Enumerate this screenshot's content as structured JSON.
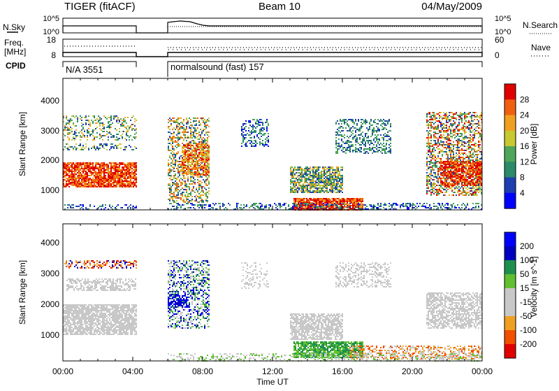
{
  "header": {
    "radar": "TIGER (fitACF)",
    "beam": "Beam 10",
    "date": "04/May/2009"
  },
  "noise_panel": {
    "left_label": "N.Sky",
    "left_ticks": [
      "10^5",
      "10^0"
    ],
    "right_ticks": [
      "10^5",
      "10^0"
    ],
    "right_label": "N.Search"
  },
  "freq_panel": {
    "left_label_1": "Freq.",
    "left_label_2": "[MHz]",
    "left_ticks": [
      "18",
      "8"
    ],
    "right_ticks": [
      "60",
      "0"
    ],
    "right_label": "Nave"
  },
  "cpid": {
    "label": "CPID",
    "segments": [
      "N/A 3551",
      "normalsound (fast) 157"
    ]
  },
  "time_axis": {
    "label": "Time UT",
    "ticks": [
      "00:00",
      "04:00",
      "08:00",
      "12:00",
      "16:00",
      "20:00",
      "00:00"
    ]
  },
  "colors": {
    "power": [
      "#0000ff",
      "#1f3fb0",
      "#2a8a6a",
      "#4fa55a",
      "#c8c832",
      "#f0a020",
      "#f06010",
      "#e00000"
    ],
    "velocity": [
      "#e00000",
      "#f05000",
      "#f0a020",
      "#c8c8c8",
      "#c8c8c8",
      "#60c030",
      "#1f8f4f",
      "#0000c0",
      "#0000ff"
    ]
  },
  "chart_data": [
    {
      "type": "heatmap",
      "ylabel": "Slant Range [km]",
      "yticks": [
        "1000",
        "2000",
        "3000",
        "4000"
      ],
      "ylim": [
        180,
        4600
      ],
      "xlabel": "Time UT",
      "xlim_hours": [
        0,
        24
      ],
      "colorbar": {
        "label": "Power [dB]",
        "ticks": [
          "4",
          "8",
          "12",
          "16",
          "20",
          "24",
          "28"
        ]
      }
    },
    {
      "type": "heatmap",
      "ylabel": "Slant Range [km]",
      "yticks": [
        "1000",
        "2000",
        "3000",
        "4000"
      ],
      "ylim": [
        180,
        4600
      ],
      "xlabel": "Time UT",
      "xlim_hours": [
        0,
        24
      ],
      "colorbar": {
        "label": "Velocity [m s^-1]",
        "ticks": [
          "200",
          "100",
          "50",
          "15",
          "-15",
          "-50",
          "-100",
          "-200"
        ]
      }
    }
  ]
}
